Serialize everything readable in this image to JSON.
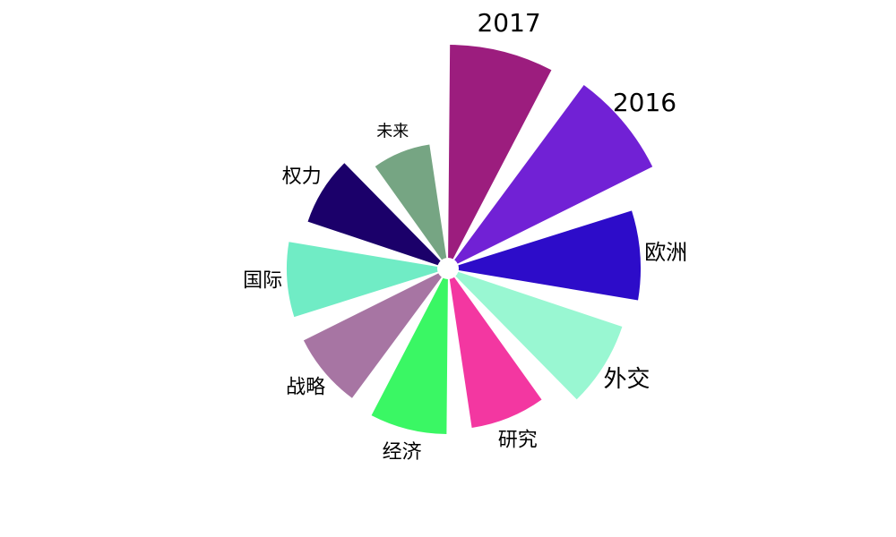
{
  "chart_data": {
    "type": "radial-bar",
    "categories": [
      "2017",
      "2016",
      "欧洲",
      "外交",
      "研究",
      "经济",
      "战略",
      "国际",
      "权力",
      "未来"
    ],
    "values": [
      250,
      255,
      215,
      205,
      180,
      185,
      180,
      180,
      165,
      140
    ],
    "colors": [
      "#9c1d7e",
      "#7121d5",
      "#2d0cc9",
      "#99f7d2",
      "#f337a1",
      "#3af764",
      "#a775a3",
      "#70ecc5",
      "#1b006a",
      "#76a583"
    ],
    "label_sizes": [
      28,
      28,
      24,
      26,
      22,
      22,
      22,
      22,
      22,
      18
    ],
    "direction": "clockwise from top",
    "grid": false,
    "legend": "none"
  }
}
